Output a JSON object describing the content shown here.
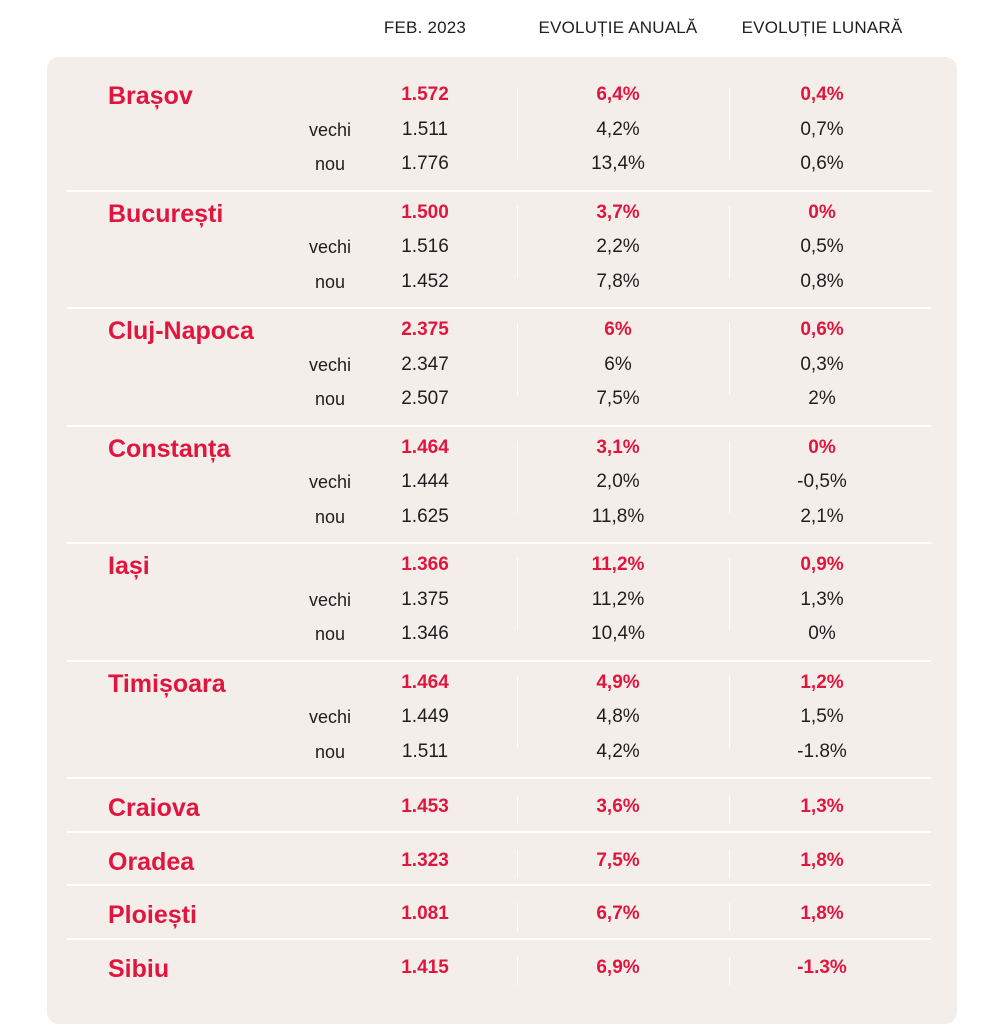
{
  "headers": {
    "month": "FEB. 2023",
    "annual": "EVOLUȚIE ANUALĂ",
    "monthly": "EVOLUȚIE LUNARĂ"
  },
  "cities": [
    {
      "name": "Brașov",
      "total": {
        "price": "1.572",
        "annual": "6,4%",
        "monthly": "0,4%"
      },
      "subrows": [
        {
          "label": "vechi",
          "price": "1.511",
          "annual": "4,2%",
          "monthly": "0,7%"
        },
        {
          "label": "nou",
          "price": "1.776",
          "annual": "13,4%",
          "monthly": "0,6%"
        }
      ]
    },
    {
      "name": "București",
      "total": {
        "price": "1.500",
        "annual": "3,7%",
        "monthly": "0%"
      },
      "subrows": [
        {
          "label": "vechi",
          "price": "1.516",
          "annual": "2,2%",
          "monthly": "0,5%"
        },
        {
          "label": "nou",
          "price": "1.452",
          "annual": "7,8%",
          "monthly": "0,8%"
        }
      ]
    },
    {
      "name": "Cluj-Napoca",
      "total": {
        "price": "2.375",
        "annual": "6%",
        "monthly": "0,6%"
      },
      "subrows": [
        {
          "label": "vechi",
          "price": "2.347",
          "annual": "6%",
          "monthly": "0,3%"
        },
        {
          "label": "nou",
          "price": "2.507",
          "annual": "7,5%",
          "monthly": "2%"
        }
      ]
    },
    {
      "name": "Constanța",
      "total": {
        "price": "1.464",
        "annual": "3,1%",
        "monthly": "0%"
      },
      "subrows": [
        {
          "label": "vechi",
          "price": "1.444",
          "annual": "2,0%",
          "monthly": "-0,5%"
        },
        {
          "label": "nou",
          "price": "1.625",
          "annual": "11,8%",
          "monthly": "2,1%"
        }
      ]
    },
    {
      "name": "Iași",
      "total": {
        "price": "1.366",
        "annual": "11,2%",
        "monthly": "0,9%"
      },
      "subrows": [
        {
          "label": "vechi",
          "price": "1.375",
          "annual": "11,2%",
          "monthly": "1,3%"
        },
        {
          "label": "nou",
          "price": "1.346",
          "annual": "10,4%",
          "monthly": "0%"
        }
      ]
    },
    {
      "name": "Timișoara",
      "total": {
        "price": "1.464",
        "annual": "4,9%",
        "monthly": "1,2%"
      },
      "subrows": [
        {
          "label": "vechi",
          "price": "1.449",
          "annual": "4,8%",
          "monthly": "1,5%"
        },
        {
          "label": "nou",
          "price": "1.511",
          "annual": "4,2%",
          "monthly": "-1.8%"
        }
      ]
    },
    {
      "name": "Craiova",
      "total": {
        "price": "1.453",
        "annual": "3,6%",
        "monthly": "1,3%"
      },
      "subrows": []
    },
    {
      "name": "Oradea",
      "total": {
        "price": "1.323",
        "annual": "7,5%",
        "monthly": "1,8%"
      },
      "subrows": []
    },
    {
      "name": "Ploiești",
      "total": {
        "price": "1.081",
        "annual": "6,7%",
        "monthly": "1,8%"
      },
      "subrows": []
    },
    {
      "name": "Sibiu",
      "total": {
        "price": "1.415",
        "annual": "6,9%",
        "monthly": "-1.3%"
      },
      "subrows": []
    }
  ]
}
